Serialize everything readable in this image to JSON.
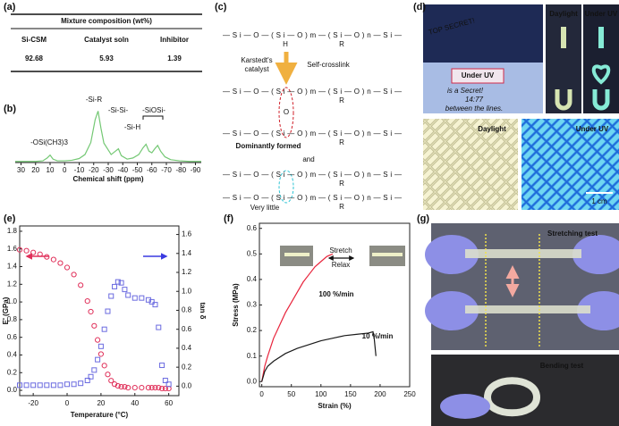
{
  "panel_labels": [
    "(a)",
    "(b)",
    "(c)",
    "(d)",
    "(e)",
    "(f)",
    "(g)"
  ],
  "table": {
    "title": "Mixture composition (wt%)",
    "columns": [
      "Si-CSM",
      "Catalyst soln",
      "Inhibitor"
    ],
    "rows": [
      [
        92.68,
        5.93,
        1.39
      ]
    ]
  },
  "scheme": {
    "formulas": [
      "—Si—O—(Si—O)m—(Si—O)n—Si—",
      "—Si—O—(Si—O)m—(Si—O)n—Si—",
      "—Si—O—(Si—O)m—(Si—O)n—Si—",
      "—Si—O—(Si—O)m—(Si—O)n—Si—",
      "—Si—O—(Si—O)m—(Si—O)n—Si—"
    ],
    "substituents": [
      "H",
      "R",
      "R",
      "O",
      "R",
      "R",
      "R"
    ],
    "catalyst": [
      "Karstedt's",
      "catalyst"
    ],
    "route": "Self-crosslink",
    "major": "Dominantly formed",
    "and": "and",
    "minor": "Very little"
  },
  "photos_d": {
    "note": "TOP SECRET!",
    "handwriting": [
      "is a Secret!",
      "14:77",
      "between the lines."
    ],
    "captions": [
      "Under UV",
      "Daylight",
      "Under UV",
      "Daylight",
      "Under UV"
    ],
    "scale": "1 cm"
  },
  "photos_g": {
    "captions": [
      "Stretching test",
      "Bending test"
    ]
  },
  "photo_f": {
    "stretch": "Stretch",
    "relax": "Relax"
  },
  "chart_data": [
    {
      "type": "line",
      "xlabel": "Chemical shift (ppm)",
      "color": "#74c874",
      "xlim": [
        34,
        -94
      ],
      "ylim": [
        0,
        100
      ],
      "xticks": [
        30,
        20,
        10,
        0,
        -10,
        -20,
        -30,
        -40,
        -50,
        -60,
        -70,
        -80,
        -90
      ],
      "x": [
        34,
        30,
        25,
        20,
        15,
        12,
        10,
        8,
        5,
        0,
        -5,
        -10,
        -14,
        -18,
        -21,
        -23,
        -25,
        -27,
        -29,
        -32,
        -35,
        -37,
        -39,
        -43,
        -47,
        -51,
        -54,
        -56,
        -58,
        -60,
        -62,
        -64,
        -66,
        -69,
        -73,
        -79,
        -86,
        -94
      ],
      "values": [
        2,
        2,
        2,
        2,
        3,
        8,
        13,
        6,
        3,
        3,
        4,
        7,
        14,
        35,
        75,
        90,
        60,
        34,
        26,
        14,
        20,
        24,
        12,
        6,
        8,
        14,
        26,
        32,
        20,
        17,
        24,
        30,
        20,
        10,
        5,
        3,
        2,
        2
      ],
      "annotations": [
        {
          "text": "-OSi(CH3)3",
          "color": "#111111"
        },
        {
          "text": "-Si-R",
          "color": "#111111"
        },
        {
          "text": "-Si-Si-",
          "color": "#2ec4d4"
        },
        {
          "text": "-Si-H",
          "color": "#111111"
        },
        {
          "text": "-SiOSi-",
          "color": "#d0202a"
        }
      ]
    },
    {
      "type": "scatter",
      "xlabel": "Temperature (°C)",
      "ylabel": "E' (GPa)",
      "y2label": "tan δ",
      "xlim": [
        -28,
        66
      ],
      "ylim": [
        -0.06,
        1.86
      ],
      "y2lim": [
        -0.1,
        1.69
      ],
      "xticks": [
        -20,
        0,
        20,
        40,
        60
      ],
      "yticks": [
        {
          "value": 0,
          "label": "0.0"
        },
        0.2,
        0.4,
        0.6,
        0.8,
        {
          "value": 1,
          "label": "1.0"
        },
        1.2,
        1.4,
        1.6,
        1.8
      ],
      "y2ticks": [
        {
          "value": 0,
          "label": "0.0"
        },
        0.2,
        0.4,
        0.6,
        0.8,
        {
          "value": 1,
          "label": "1.0"
        },
        1.2,
        1.4,
        1.6
      ],
      "x": [
        -28,
        -24,
        -20,
        -16,
        -12,
        -8,
        -4,
        0,
        4,
        8,
        12,
        14,
        16,
        18,
        20,
        22,
        24,
        26,
        28,
        30,
        32,
        34,
        36,
        40,
        44,
        48,
        50,
        52,
        54,
        56,
        58,
        60
      ],
      "series": [
        {
          "color": "#e0305a",
          "marker": "circle",
          "values": [
            1.59,
            1.58,
            1.56,
            1.54,
            1.51,
            1.48,
            1.44,
            1.39,
            1.31,
            1.19,
            1.01,
            0.89,
            0.73,
            0.57,
            0.41,
            0.28,
            0.18,
            0.11,
            0.07,
            0.05,
            0.04,
            0.04,
            0.03,
            0.03,
            0.03,
            0.03,
            0.03,
            0.03,
            0.03,
            0.02,
            0.02,
            0.02
          ]
        },
        {
          "color": "#6b6be0",
          "marker": "square",
          "axis": "y2",
          "values": [
            0.01,
            0.01,
            0.01,
            0.01,
            0.01,
            0.01,
            0.01,
            0.02,
            0.02,
            0.03,
            0.06,
            0.1,
            0.17,
            0.28,
            0.42,
            0.6,
            0.79,
            0.95,
            1.05,
            1.1,
            1.09,
            1.02,
            0.96,
            0.93,
            0.93,
            0.91,
            0.89,
            0.86,
            0.62,
            0.22,
            0.06,
            0.02
          ]
        }
      ]
    },
    {
      "type": "line",
      "xlabel": "Strain (%)",
      "ylabel": "Stress (MPa)",
      "xlim": [
        -4,
        250
      ],
      "ylim": [
        -0.02,
        0.62
      ],
      "xticks": [
        0,
        50,
        100,
        150,
        200,
        250
      ],
      "yticks": [
        {
          "value": 0,
          "label": "0.0"
        },
        0.1,
        0.2,
        0.3,
        0.4,
        0.5,
        0.6
      ],
      "series": [
        {
          "name": "100 %/min",
          "color": "#e8243c",
          "x": [
            0,
            5,
            10,
            20,
            30,
            40,
            50,
            60,
            70,
            80,
            90,
            100,
            110,
            120
          ],
          "values": [
            0,
            0.06,
            0.1,
            0.17,
            0.22,
            0.27,
            0.31,
            0.35,
            0.39,
            0.42,
            0.45,
            0.47,
            0.49,
            0.5
          ]
        },
        {
          "name": "10 %/min",
          "color": "#1a1a1a",
          "x": [
            0,
            5,
            10,
            20,
            40,
            60,
            80,
            100,
            120,
            140,
            160,
            180,
            188,
            190,
            193
          ],
          "values": [
            0,
            0.04,
            0.06,
            0.08,
            0.11,
            0.13,
            0.145,
            0.16,
            0.17,
            0.18,
            0.185,
            0.19,
            0.195,
            0.17,
            0.1
          ]
        }
      ]
    }
  ]
}
